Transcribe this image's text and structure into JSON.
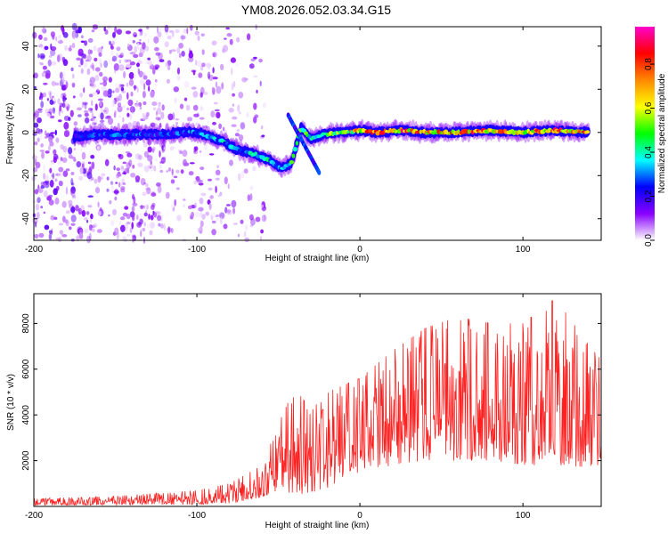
{
  "title": "YM08.2026.052.03.34.G15",
  "chart_data": [
    {
      "type": "heatmap",
      "xlabel": "Height of straight line (km)",
      "ylabel": "Frequency (Hz)",
      "xlim": [
        -200,
        148
      ],
      "ylim": [
        -50,
        49
      ],
      "xticks": [
        -200,
        -100,
        0,
        100
      ],
      "yticks": [
        -40,
        -20,
        0,
        20,
        40
      ],
      "colorbar": {
        "label": "Normalized spectral amplitude",
        "range": [
          0,
          0.97
        ],
        "ticks": [
          0,
          0.2,
          0.4,
          0.6,
          0.8
        ],
        "colors": [
          "#ffffff",
          "#8800ff",
          "#0000ff",
          "#00ffff",
          "#00ff00",
          "#ffff00",
          "#ff8800",
          "#ff0000",
          "#ff00cc"
        ]
      },
      "ridge": [
        {
          "x": -175,
          "y": -2,
          "a": 0.25
        },
        {
          "x": -160,
          "y": -1,
          "a": 0.3
        },
        {
          "x": -150,
          "y": -1,
          "a": 0.32
        },
        {
          "x": -140,
          "y": -1,
          "a": 0.33
        },
        {
          "x": -130,
          "y": -1,
          "a": 0.32
        },
        {
          "x": -120,
          "y": -1,
          "a": 0.3
        },
        {
          "x": -110,
          "y": 0,
          "a": 0.32
        },
        {
          "x": -100,
          "y": 0,
          "a": 0.35
        },
        {
          "x": -95,
          "y": -1,
          "a": 0.34
        },
        {
          "x": -85,
          "y": -4,
          "a": 0.4
        },
        {
          "x": -75,
          "y": -8,
          "a": 0.42
        },
        {
          "x": -65,
          "y": -10,
          "a": 0.45
        },
        {
          "x": -55,
          "y": -13,
          "a": 0.43
        },
        {
          "x": -48,
          "y": -17,
          "a": 0.4
        },
        {
          "x": -42,
          "y": -14,
          "a": 0.5
        },
        {
          "x": -36,
          "y": 2,
          "a": 0.55
        },
        {
          "x": -30,
          "y": -3,
          "a": 0.55
        },
        {
          "x": -22,
          "y": -1,
          "a": 0.6
        },
        {
          "x": -10,
          "y": 0,
          "a": 0.7
        },
        {
          "x": 0,
          "y": 1,
          "a": 0.8
        },
        {
          "x": 10,
          "y": 0,
          "a": 0.85
        },
        {
          "x": 25,
          "y": 1,
          "a": 0.9
        },
        {
          "x": 40,
          "y": 0,
          "a": 0.85
        },
        {
          "x": 60,
          "y": 0,
          "a": 0.88
        },
        {
          "x": 80,
          "y": 1,
          "a": 0.9
        },
        {
          "x": 100,
          "y": 0,
          "a": 0.86
        },
        {
          "x": 120,
          "y": 1,
          "a": 0.88
        },
        {
          "x": 140,
          "y": 0,
          "a": 0.85
        }
      ]
    },
    {
      "type": "line",
      "xlabel": "Height of straight line (km)",
      "ylabel": "SNR (10 * v/v)",
      "xlim": [
        -200,
        148
      ],
      "ylim": [
        0,
        9300
      ],
      "xticks": [
        -200,
        -100,
        0,
        100
      ],
      "yticks": [
        2000,
        4000,
        6000,
        8000
      ],
      "color": "#ff2020",
      "envelope": {
        "x": [
          -200,
          -150,
          -100,
          -80,
          -60,
          -50,
          -40,
          -30,
          -20,
          0,
          20,
          40,
          60,
          80,
          100,
          120,
          140,
          148
        ],
        "low": [
          50,
          60,
          80,
          120,
          400,
          700,
          500,
          600,
          800,
          1500,
          1800,
          2000,
          2000,
          2000,
          1800,
          1800,
          1700,
          1800
        ],
        "high": [
          350,
          450,
          700,
          1000,
          1800,
          3600,
          5200,
          4200,
          5000,
          5600,
          6800,
          7800,
          8300,
          8000,
          8000,
          9100,
          7100,
          6400
        ]
      }
    }
  ]
}
